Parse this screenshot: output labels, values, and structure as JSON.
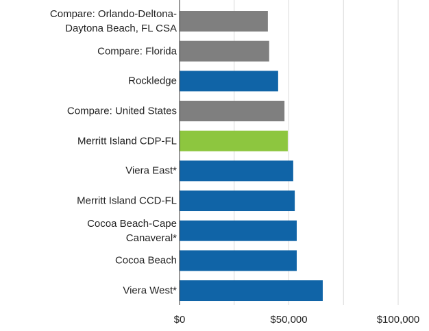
{
  "chart_data": {
    "type": "barh",
    "categories": [
      "Compare: Orlando-Deltona-\nDaytona Beach, FL CSA",
      "Compare: Florida",
      "Rockledge",
      "Compare: United States",
      "Merritt Island CDP-FL",
      "Viera East*",
      "Merritt Island CCD-FL",
      "Cocoa Beach-Cape\nCanaveral*",
      "Cocoa Beach",
      "Viera West*"
    ],
    "values": [
      40400,
      41000,
      45100,
      48000,
      49500,
      52000,
      52700,
      53600,
      53600,
      65500
    ],
    "colors": [
      "#7f7f7f",
      "#7f7f7f",
      "#1064a7",
      "#7f7f7f",
      "#8dc63f",
      "#1064a7",
      "#1064a7",
      "#1064a7",
      "#1064a7",
      "#1064a7"
    ],
    "xlim": [
      0,
      100000
    ],
    "xticks": [
      {
        "value": 0,
        "label": "$0"
      },
      {
        "value": 50000,
        "label": "$50,000"
      },
      {
        "value": 100000,
        "label": "$100,000"
      }
    ],
    "grid_values": [
      0,
      25000,
      50000,
      75000,
      100000
    ]
  }
}
